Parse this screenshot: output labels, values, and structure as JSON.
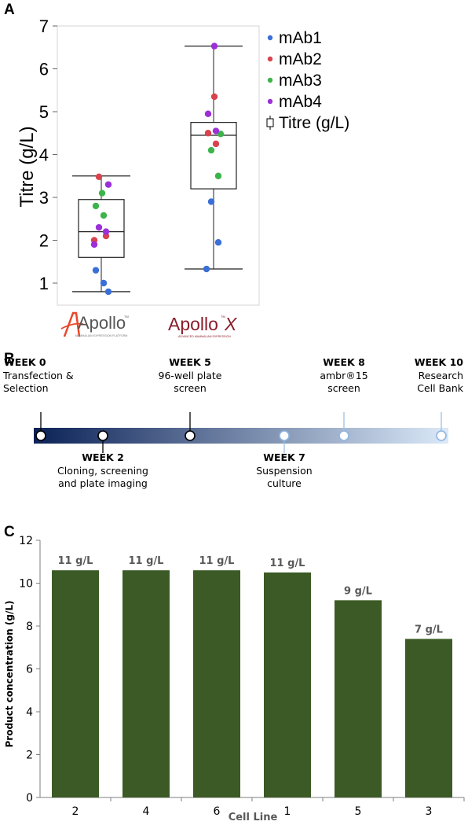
{
  "panel_labels": {
    "a": "A",
    "b": "B",
    "c": "C"
  },
  "panel_a": {
    "legend": [
      {
        "label": "mAb1",
        "color": "#3b6fd8"
      },
      {
        "label": "mAb2",
        "color": "#d8434e"
      },
      {
        "label": "mAb3",
        "color": "#3cb44b"
      },
      {
        "label": "mAb4",
        "color": "#9b30d9"
      },
      {
        "label": "Titre (g/L)",
        "color": "#000000"
      }
    ],
    "logos": [
      {
        "name": "Apollo",
        "tm": "TM",
        "tagline": "MAMMALIAN EXPRESSION PLATFORM",
        "color": "#555555",
        "accent": "#e8472a"
      },
      {
        "name": "Apollo",
        "suffix": "X",
        "tm": "TM",
        "tagline": "ADVANCED MAMMALIAN EXPRESSION",
        "color": "#8a1c2b"
      }
    ]
  },
  "panel_b": {
    "gradient": [
      "#0b2257",
      "#dbe9f8"
    ],
    "milestones": [
      {
        "week": "WEEK 0",
        "text": [
          "Transfection &",
          "Selection"
        ],
        "position": "above"
      },
      {
        "week": "WEEK 2",
        "text": [
          "Cloning, screening",
          "and plate imaging"
        ],
        "position": "below"
      },
      {
        "week": "WEEK 5",
        "text": [
          "96-well plate",
          "screen"
        ],
        "position": "above"
      },
      {
        "week": "WEEK 7",
        "text": [
          "Suspension",
          "culture"
        ],
        "position": "below"
      },
      {
        "week": "WEEK 8",
        "text": [
          "ambr®15",
          "screen"
        ],
        "position": "above"
      },
      {
        "week": "WEEK 10",
        "text": [
          "Research",
          "Cell Bank"
        ],
        "position": "above"
      }
    ]
  },
  "chart_data": [
    {
      "type": "scatter",
      "ylabel": "Titre (g/L)",
      "ylim": [
        0.65,
        7
      ],
      "yticks": [
        1,
        2,
        3,
        4,
        5,
        6,
        7
      ],
      "categories": [
        "Apollo",
        "ApolloX"
      ],
      "series": [
        {
          "name": "mAb1",
          "color": "#3b6fd8",
          "points": [
            {
              "category": "Apollo",
              "y": 1.3
            },
            {
              "category": "Apollo",
              "y": 1.0
            },
            {
              "category": "Apollo",
              "y": 0.8
            },
            {
              "category": "ApolloX",
              "y": 2.9
            },
            {
              "category": "ApolloX",
              "y": 1.95
            },
            {
              "category": "ApolloX",
              "y": 1.33
            }
          ]
        },
        {
          "name": "mAb2",
          "color": "#d8434e",
          "points": [
            {
              "category": "Apollo",
              "y": 3.48
            },
            {
              "category": "Apollo",
              "y": 2.1
            },
            {
              "category": "Apollo",
              "y": 2.0
            },
            {
              "category": "ApolloX",
              "y": 5.35
            },
            {
              "category": "ApolloX",
              "y": 4.5
            },
            {
              "category": "ApolloX",
              "y": 4.25
            }
          ]
        },
        {
          "name": "mAb3",
          "color": "#3cb44b",
          "points": [
            {
              "category": "Apollo",
              "y": 3.1
            },
            {
              "category": "Apollo",
              "y": 2.8
            },
            {
              "category": "Apollo",
              "y": 2.58
            },
            {
              "category": "ApolloX",
              "y": 4.48
            },
            {
              "category": "ApolloX",
              "y": 4.1
            },
            {
              "category": "ApolloX",
              "y": 3.5
            }
          ]
        },
        {
          "name": "mAb4",
          "color": "#9b30d9",
          "points": [
            {
              "category": "Apollo",
              "y": 3.3
            },
            {
              "category": "Apollo",
              "y": 2.3
            },
            {
              "category": "Apollo",
              "y": 2.2
            },
            {
              "category": "Apollo",
              "y": 1.9
            },
            {
              "category": "ApolloX",
              "y": 6.53
            },
            {
              "category": "ApolloX",
              "y": 4.95
            },
            {
              "category": "ApolloX",
              "y": 4.55
            }
          ]
        }
      ],
      "boxes": [
        {
          "category": "Apollo",
          "min": 0.8,
          "q1": 1.6,
          "median": 2.2,
          "q3": 2.95,
          "max": 3.5
        },
        {
          "category": "ApolloX",
          "min": 1.33,
          "q1": 3.2,
          "median": 4.45,
          "q3": 4.75,
          "max": 6.53
        }
      ],
      "legend": "top-right",
      "grid": false
    },
    {
      "type": "bar",
      "categories": [
        "2",
        "4",
        "6",
        "1",
        "5",
        "3"
      ],
      "values": [
        10.6,
        10.6,
        10.6,
        10.5,
        9.2,
        7.4
      ],
      "data_labels": [
        "11 g/L",
        "11 g/L",
        "11 g/L",
        "11 g/L",
        "9 g/L",
        "7 g/L"
      ],
      "xlabel": "Cell Line",
      "ylabel": "Product concentration (g/L)",
      "ylim": [
        0,
        12
      ],
      "yticks": [
        0,
        2,
        4,
        6,
        8,
        10,
        12
      ],
      "bar_color": "#3b5a25",
      "label_color": "#595959",
      "grid": false
    }
  ]
}
